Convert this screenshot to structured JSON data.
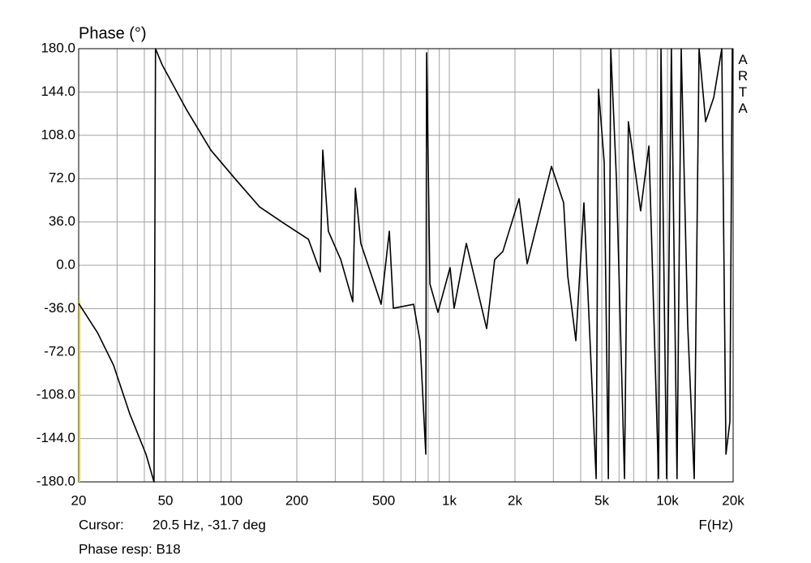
{
  "chart_data": {
    "type": "line",
    "y_label": "Phase (°)",
    "x_label": "F(Hz)",
    "watermark": "ARTA",
    "cursor_label": "Cursor:",
    "cursor_value": "20.5 Hz, -31.7 deg",
    "footer": "Phase resp: B18",
    "xscale": "log",
    "grid": true,
    "xlim": [
      20,
      20000
    ],
    "ylim": [
      -180,
      180
    ],
    "xticks": [
      20,
      50,
      100,
      200,
      500,
      {
        "value": 1000,
        "label": "1k"
      },
      {
        "value": 2000,
        "label": "2k"
      },
      {
        "value": 5000,
        "label": "5k"
      },
      {
        "value": 10000,
        "label": "10k"
      },
      {
        "value": 20000,
        "label": "20k"
      }
    ],
    "xminor": [
      30,
      40,
      60,
      70,
      80,
      90,
      300,
      400,
      600,
      700,
      800,
      900,
      3000,
      4000,
      6000,
      7000,
      8000,
      9000
    ],
    "yticks": [
      {
        "value": 180,
        "label": "180.0"
      },
      {
        "value": 144,
        "label": "144.0"
      },
      {
        "value": 108,
        "label": "108.0"
      },
      {
        "value": 72,
        "label": "72.0"
      },
      {
        "value": 36,
        "label": "36.0"
      },
      {
        "value": 0,
        "label": "0.0"
      },
      {
        "value": -36,
        "label": "-36.0"
      },
      {
        "value": -72,
        "label": "-72.0"
      },
      {
        "value": -108,
        "label": "-108.0"
      },
      {
        "value": -144,
        "label": "-144.0"
      },
      {
        "value": -180,
        "label": "-180.0"
      }
    ],
    "x": [
      20,
      24.4,
      28.9,
      34.3,
      40.7,
      44.3,
      45,
      48.3,
      62.4,
      80.7,
      104,
      135,
      174,
      226,
      256,
      263,
      279,
      318,
      361,
      371,
      393,
      487,
      531,
      554,
      686,
      734,
      780,
      787,
      815,
      887,
      1008,
      1052,
      1197,
      1483,
      1614,
      1760,
      2088,
      2275,
      2940,
      3342,
      3490,
      3802,
      4140,
      4710,
      4830,
      5128,
      5358,
      5496,
      5834,
      6354,
      6620,
      7534,
      8220,
      9100,
      9340,
      9910,
      10420,
      11060,
      11560,
      12380,
      13260,
      13960,
      14960,
      16300,
      17740,
      18540,
      19320,
      19820
    ],
    "series": [
      {
        "color": "#000000",
        "values": [
          -31.7,
          -56,
          -83,
          -123.5,
          -157,
          -180,
          180,
          166.5,
          129.4,
          95.7,
          72.1,
          48.5,
          35,
          21.6,
          -5.4,
          95.7,
          28.3,
          4.7,
          -30.3,
          64,
          18.2,
          -32.4,
          28.3,
          -35.7,
          -32.4,
          -62.7,
          -157,
          176.6,
          -15.5,
          -39.1,
          -2,
          -35.7,
          18.2,
          -52.6,
          4.7,
          11.5,
          55.3,
          1.3,
          82.2,
          51.9,
          -8.8,
          -62.7,
          51.9,
          -177.3,
          146.3,
          85.6,
          -177.3,
          180,
          72.1,
          -177.3,
          119.3,
          45.2,
          99.1,
          -177.3,
          180,
          -177.3,
          180,
          -177.3,
          180,
          -49.2,
          -177.3,
          180,
          119.3,
          139.5,
          180,
          -157,
          -130.1,
          180
        ]
      }
    ]
  }
}
